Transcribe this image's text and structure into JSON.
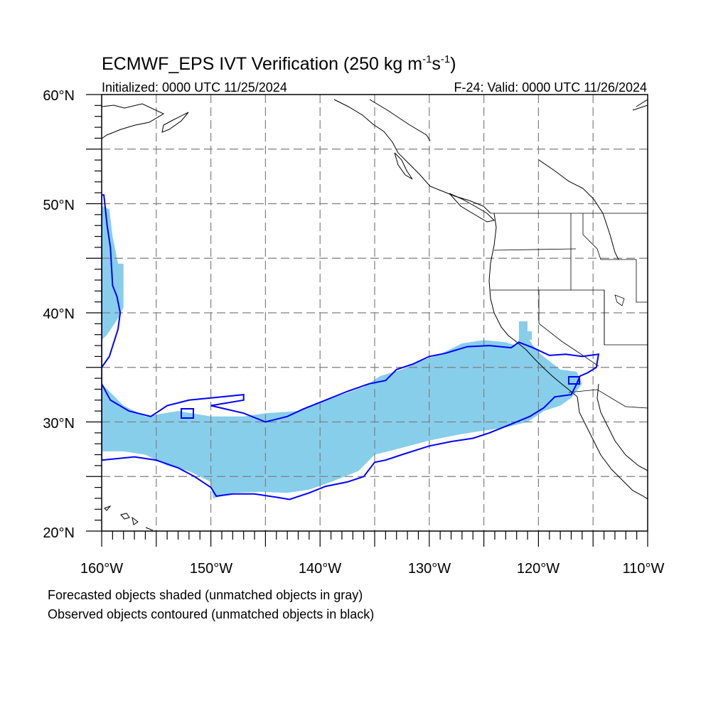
{
  "title": {
    "main": "ECMWF_EPS IVT Verification (250 kg m",
    "sup1": "-1",
    "mid": "s",
    "sup2": "-1",
    "end": ")"
  },
  "subtitle": {
    "left": "Initialized: 0000 UTC 11/25/2024",
    "right": "F-24: Valid: 0000 UTC 11/26/2024"
  },
  "map": {
    "lon_range": [
      -160,
      -110
    ],
    "lat_range": [
      20,
      60
    ],
    "projection": "cylindrical equidistant",
    "grid": "dashed gray, every 5 degrees",
    "lat_ticks": [
      {
        "value": 60,
        "label": "60°N"
      },
      {
        "value": 50,
        "label": "50°N"
      },
      {
        "value": 40,
        "label": "40°N"
      },
      {
        "value": 30,
        "label": "30°N"
      },
      {
        "value": 20,
        "label": "20°N"
      }
    ],
    "lon_ticks": [
      {
        "value": -160,
        "label": "160°W"
      },
      {
        "value": -150,
        "label": "150°W"
      },
      {
        "value": -140,
        "label": "140°W"
      },
      {
        "value": -130,
        "label": "130°W"
      },
      {
        "value": -120,
        "label": "120°W"
      },
      {
        "value": -110,
        "label": "110°W"
      }
    ],
    "colors": {
      "forecast_fill": "#87ceeb",
      "observed_contour": "#0000ff",
      "grid": "#7f7f7f",
      "coast": "#000000"
    },
    "forecast_object_poly": [
      [
        -160,
        37.5
      ],
      [
        -159.5,
        38
      ],
      [
        -158.5,
        39.5
      ],
      [
        -158,
        40.5
      ],
      [
        -158,
        44.5
      ],
      [
        -158.5,
        44.5
      ],
      [
        -159,
        47
      ],
      [
        -159.3,
        49.5
      ],
      [
        -160,
        49.8
      ],
      [
        -160,
        33.5
      ],
      [
        -158,
        31.5
      ],
      [
        -156,
        30.5
      ],
      [
        -153,
        31
      ],
      [
        -150,
        30.5
      ],
      [
        -147,
        30.5
      ],
      [
        -145,
        30.8
      ],
      [
        -142,
        31
      ],
      [
        -140,
        31.8
      ],
      [
        -138,
        32.5
      ],
      [
        -136,
        33.2
      ],
      [
        -134.5,
        34.2
      ],
      [
        -132.5,
        34.8
      ],
      [
        -131,
        35.5
      ],
      [
        -129,
        36.2
      ],
      [
        -127,
        37.2
      ],
      [
        -125,
        37.5
      ],
      [
        -123,
        37.3
      ],
      [
        -122,
        37
      ],
      [
        -121.5,
        38.3
      ],
      [
        -121,
        37.8
      ],
      [
        -120.5,
        37
      ],
      [
        -119.8,
        36.2
      ],
      [
        -118,
        34.8
      ],
      [
        -116.5,
        34.6
      ],
      [
        -116,
        33.5
      ],
      [
        -117,
        32.2
      ],
      [
        -118,
        31.5
      ],
      [
        -119.5,
        31
      ],
      [
        -121,
        30
      ],
      [
        -123,
        29.5
      ],
      [
        -125,
        29.2
      ],
      [
        -127,
        28.9
      ],
      [
        -130,
        28.3
      ],
      [
        -133,
        27.5
      ],
      [
        -135,
        27
      ],
      [
        -136.5,
        25.5
      ],
      [
        -139,
        24.5
      ],
      [
        -141,
        23.8
      ],
      [
        -143,
        23.5
      ],
      [
        -145.5,
        23.6
      ],
      [
        -148,
        23.5
      ],
      [
        -149.8,
        23
      ],
      [
        -150,
        24.5
      ],
      [
        -152,
        25.5
      ],
      [
        -154,
        26
      ],
      [
        -156,
        27
      ],
      [
        -158,
        27.3
      ],
      [
        -160,
        27.3
      ]
    ],
    "observed_object_poly": [
      [
        -160,
        35
      ],
      [
        -159.3,
        36
      ],
      [
        -158.5,
        38.5
      ],
      [
        -158.3,
        40
      ],
      [
        -158.6,
        41.5
      ],
      [
        -159,
        42.5
      ],
      [
        -159.2,
        46
      ],
      [
        -159.5,
        48
      ],
      [
        -159.8,
        50.8
      ],
      [
        -160,
        50.8
      ],
      [
        -160,
        33.5
      ],
      [
        -159.2,
        32
      ],
      [
        -157.5,
        31
      ],
      [
        -155.5,
        30.5
      ],
      [
        -154,
        31.5
      ],
      [
        -152,
        32
      ],
      [
        -150,
        32.2
      ],
      [
        -147,
        32.5
      ],
      [
        -147,
        32
      ],
      [
        -150,
        31.5
      ],
      [
        -147,
        30.8
      ],
      [
        -145,
        30
      ],
      [
        -143,
        30.5
      ],
      [
        -141.5,
        31.2
      ],
      [
        -139.5,
        32
      ],
      [
        -137.5,
        32.8
      ],
      [
        -135.5,
        33.5
      ],
      [
        -134,
        33.8
      ],
      [
        -133,
        34.8
      ],
      [
        -131.5,
        35.3
      ],
      [
        -130,
        36
      ],
      [
        -128.5,
        36.3
      ],
      [
        -126.5,
        36.9
      ],
      [
        -124.5,
        37
      ],
      [
        -122.5,
        36.8
      ],
      [
        -121.8,
        37.3
      ],
      [
        -120.5,
        36.8
      ],
      [
        -119,
        36.1
      ],
      [
        -117.5,
        36.2
      ],
      [
        -116,
        36
      ],
      [
        -114.5,
        36.2
      ],
      [
        -114.7,
        35
      ],
      [
        -115.5,
        34.5
      ],
      [
        -116.2,
        34.2
      ],
      [
        -116.5,
        33.5
      ],
      [
        -117,
        32.5
      ],
      [
        -118.5,
        32.3
      ],
      [
        -119.5,
        31.3
      ],
      [
        -120.8,
        30.5
      ],
      [
        -122.5,
        29.8
      ],
      [
        -124.5,
        29
      ],
      [
        -126,
        28.5
      ],
      [
        -128,
        28.2
      ],
      [
        -130,
        27.8
      ],
      [
        -132.5,
        27
      ],
      [
        -134,
        26.5
      ],
      [
        -135,
        26.3
      ],
      [
        -136,
        25
      ],
      [
        -137.5,
        24.5
      ],
      [
        -139.5,
        24.1
      ],
      [
        -141,
        23.5
      ],
      [
        -142.8,
        22.9
      ],
      [
        -144,
        23.1
      ],
      [
        -146,
        23.4
      ],
      [
        -148,
        23.4
      ],
      [
        -149.5,
        23.2
      ],
      [
        -150,
        24
      ],
      [
        -151.5,
        25
      ],
      [
        -153,
        25.8
      ],
      [
        -155,
        26.5
      ],
      [
        -157,
        26.8
      ],
      [
        -160,
        26.5
      ]
    ]
  },
  "footer": {
    "line1": "Forecasted objects shaded (unmatched objects in gray)",
    "line2": "Observed objects contoured (unmatched objects in black)"
  }
}
